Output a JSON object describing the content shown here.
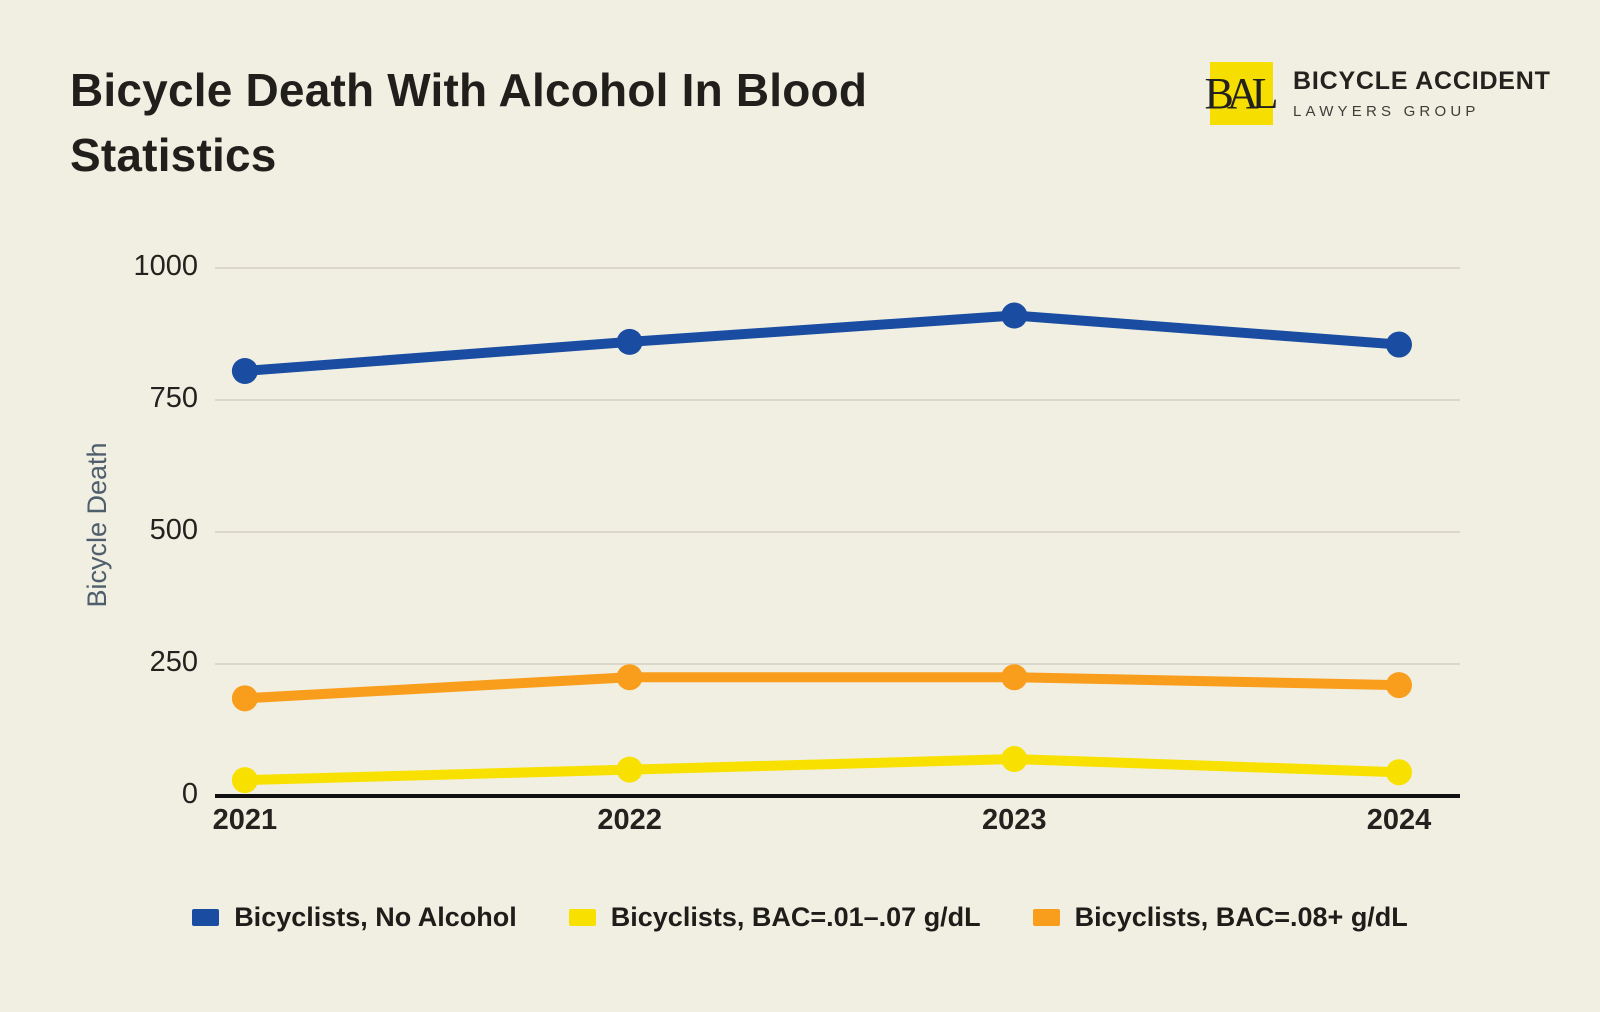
{
  "page": {
    "background_color": "#F1EFE2"
  },
  "header": {
    "title": "Bicycle Death With Alcohol In Blood Statistics",
    "title_lines": [
      "Bicycle Death With Alcohol In Blood",
      "Statistics"
    ],
    "logo": {
      "monogram": "BAL",
      "name": "BICYCLE ACCIDENT",
      "subname": "LAWYERS GROUP",
      "square_color": "#F6DF00"
    }
  },
  "chart_data": {
    "type": "line",
    "x": [
      2021,
      2022,
      2023,
      2024
    ],
    "series": [
      {
        "name": "Bicyclists, No Alcohol",
        "color": "#1A4DA2",
        "values": [
          805,
          860,
          910,
          855
        ]
      },
      {
        "name": "Bicyclists, BAC=.01–.07 g/dL",
        "color": "#F8E100",
        "values": [
          30,
          50,
          70,
          45
        ]
      },
      {
        "name": "Bicyclists, BAC=.08+ g/dL",
        "color": "#F99D1C",
        "values": [
          185,
          225,
          225,
          210
        ]
      }
    ],
    "ylabel": "Bicycle Death",
    "xlabel": "",
    "ylim": [
      0,
      1000
    ],
    "yticks": [
      0,
      250,
      500,
      750,
      1000
    ],
    "grid": true,
    "legend_position": "bottom",
    "colors": {
      "gridline": "#DBD8CA",
      "axis": "#101010",
      "tick_text": "#23221E",
      "y_title_text": "#4E5E6C"
    }
  }
}
